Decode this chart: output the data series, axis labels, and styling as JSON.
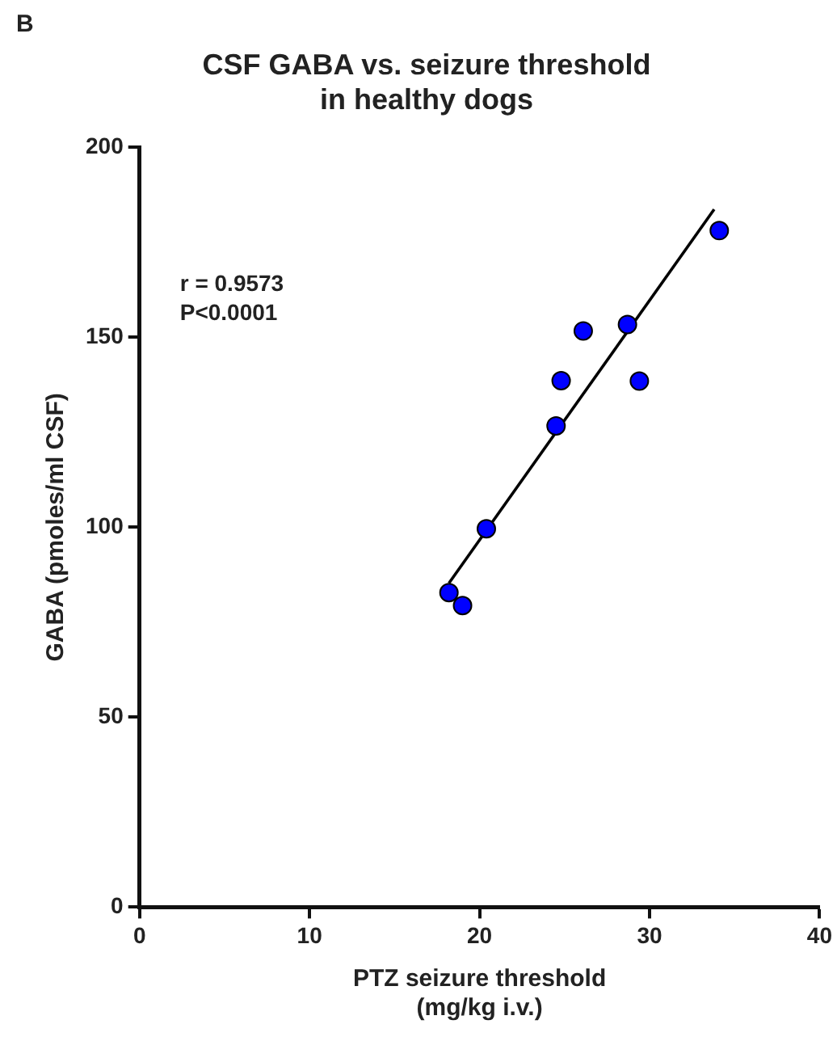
{
  "chart_data": {
    "type": "scatter",
    "title": "CSF GABA vs. seizure threshold\nin healthy dogs",
    "xlabel": "PTZ seizure threshold\n(mg/kg i.v.)",
    "ylabel": "GABA (pmoles/ml CSF)",
    "annotations": [
      "B",
      "r = 0.9573",
      "P<0.0001"
    ],
    "xlim": [
      0,
      40
    ],
    "xticks": [
      0,
      10,
      20,
      30,
      40
    ],
    "ylim": [
      0,
      200
    ],
    "yticks": [
      0,
      50,
      100,
      150,
      200
    ],
    "grid": false,
    "legend": false,
    "series": [
      {
        "type": "scatter",
        "color": "#0000ff",
        "marker": "circle",
        "x": [
          18.2,
          19.0,
          20.4,
          24.5,
          24.8,
          26.1,
          28.7,
          29.4,
          34.1
        ],
        "values": [
          82.8,
          79.4,
          99.6,
          126.7,
          138.6,
          151.7,
          153.4,
          138.5,
          178.1
        ]
      },
      {
        "type": "line",
        "color": "#000000",
        "marker": "none",
        "line_style": "solid",
        "x": [
          18.2,
          33.8
        ],
        "values": [
          85.3,
          183.7
        ]
      }
    ]
  }
}
